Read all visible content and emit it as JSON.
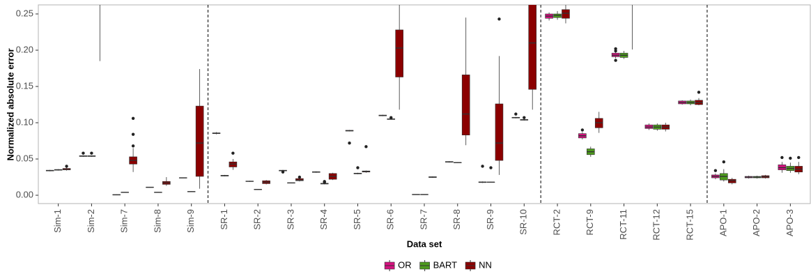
{
  "chart_data": {
    "type": "boxplot",
    "x_label": "Data set",
    "y_label": "Normalized absolute error",
    "categories": [
      "Sim-1",
      "Sim-2",
      "Sim-7",
      "Sim-8",
      "Sim-9",
      "SR-1",
      "SR-2",
      "SR-3",
      "SR-4",
      "SR-5",
      "SR-6",
      "SR-7",
      "SR-8",
      "SR-9",
      "SR-10",
      "RCT-2",
      "RCT-9",
      "RCT-11",
      "RCT-12",
      "RCT-15",
      "APO-1",
      "APO-2",
      "APO-3"
    ],
    "ylim": [
      -0.0115,
      0.2625
    ],
    "yticks": [
      {
        "value": 0,
        "label": "0.00"
      },
      0.05,
      {
        "value": 0.1,
        "label": "0.10"
      },
      0.15,
      {
        "value": 0.2,
        "label": "0.20"
      },
      0.25
    ],
    "legend": "bottom",
    "series": [
      {
        "name": "OR",
        "color": "#d4127f",
        "values": [
          {
            "min": 0.033,
            "q1": 0.0335,
            "median": 0.034,
            "q3": 0.0345,
            "max": 0.035
          },
          {
            "min": 0.053,
            "q1": 0.0535,
            "median": 0.054,
            "q3": 0.0545,
            "max": 0.055,
            "outliers": [
              0.058
            ]
          },
          {
            "min": 0,
            "q1": 0.0003,
            "median": 0.0006,
            "q3": 0.0009,
            "max": 0.0012
          },
          {
            "min": 0.0105,
            "q1": 0.0108,
            "median": 0.011,
            "q3": 0.0112,
            "max": 0.0115
          },
          {
            "min": 0.0235,
            "q1": 0.0238,
            "median": 0.024,
            "q3": 0.0242,
            "max": 0.0245
          },
          {
            "min": 0.084,
            "q1": 0.085,
            "median": 0.0855,
            "q3": 0.086,
            "max": 0.087
          },
          {
            "min": 0.0185,
            "q1": 0.019,
            "median": 0.0192,
            "q3": 0.0195,
            "max": 0.02
          },
          {
            "min": 0.033,
            "q1": 0.0335,
            "median": 0.034,
            "q3": 0.0345,
            "max": 0.035,
            "outliers": [
              0.032
            ]
          },
          {
            "min": 0.031,
            "q1": 0.0315,
            "median": 0.032,
            "q3": 0.0325,
            "max": 0.033
          },
          {
            "min": 0.088,
            "q1": 0.0885,
            "median": 0.089,
            "q3": 0.0895,
            "max": 0.09,
            "outliers": [
              0.072
            ]
          },
          {
            "min": 0.109,
            "q1": 0.1095,
            "median": 0.11,
            "q3": 0.1105,
            "max": 0.111
          },
          {
            "min": 0.0005,
            "q1": 0.0008,
            "median": 0.001,
            "q3": 0.0012,
            "max": 0.0015
          },
          {
            "min": 0.045,
            "q1": 0.0455,
            "median": 0.046,
            "q3": 0.0465,
            "max": 0.047
          },
          {
            "min": 0.017,
            "q1": 0.0175,
            "median": 0.018,
            "q3": 0.0185,
            "max": 0.019,
            "outliers": [
              0.04
            ]
          },
          {
            "min": 0.106,
            "q1": 0.1065,
            "median": 0.107,
            "q3": 0.1075,
            "max": 0.108,
            "outliers": [
              0.112
            ]
          },
          {
            "min": 0.241,
            "q1": 0.244,
            "median": 0.247,
            "q3": 0.25,
            "max": 0.252
          },
          {
            "min": 0.077,
            "q1": 0.079,
            "median": 0.082,
            "q3": 0.085,
            "max": 0.087,
            "outliers": [
              0.09
            ]
          },
          {
            "min": 0.189,
            "q1": 0.191,
            "median": 0.193,
            "q3": 0.196,
            "max": 0.198,
            "outliers": [
              0.202,
              0.199,
              0.186
            ]
          },
          {
            "min": 0.09,
            "q1": 0.092,
            "median": 0.094,
            "q3": 0.097,
            "max": 0.099
          },
          {
            "min": 0.125,
            "q1": 0.126,
            "median": 0.128,
            "q3": 0.13,
            "max": 0.131
          },
          {
            "min": 0.022,
            "q1": 0.024,
            "median": 0.026,
            "q3": 0.028,
            "max": 0.03,
            "outliers": [
              0.034
            ]
          },
          {
            "min": 0.023,
            "q1": 0.024,
            "median": 0.025,
            "q3": 0.026,
            "max": 0.027
          },
          {
            "min": 0.031,
            "q1": 0.035,
            "median": 0.038,
            "q3": 0.042,
            "max": 0.046,
            "outliers": [
              0.052
            ]
          }
        ]
      },
      {
        "name": "BART",
        "color": "#4c9a1c",
        "values": [
          {
            "min": 0.034,
            "q1": 0.0345,
            "median": 0.035,
            "q3": 0.0355,
            "max": 0.036
          },
          {
            "min": 0.053,
            "q1": 0.0535,
            "median": 0.054,
            "q3": 0.0545,
            "max": 0.055,
            "outliers": [
              0.058
            ]
          },
          {
            "min": 0.0035,
            "q1": 0.0038,
            "median": 0.004,
            "q3": 0.0042,
            "max": 0.0045
          },
          {
            "min": 0.0035,
            "q1": 0.0038,
            "median": 0.004,
            "q3": 0.0042,
            "max": 0.0045
          },
          {
            "min": 0.0045,
            "q1": 0.0048,
            "median": 0.005,
            "q3": 0.0052,
            "max": 0.0055
          },
          {
            "min": 0.026,
            "q1": 0.0265,
            "median": 0.027,
            "q3": 0.0275,
            "max": 0.028
          },
          {
            "min": 0.0075,
            "q1": 0.0078,
            "median": 0.008,
            "q3": 0.0082,
            "max": 0.0085
          },
          {
            "min": 0.0165,
            "q1": 0.0168,
            "median": 0.017,
            "q3": 0.0172,
            "max": 0.0175
          },
          {
            "min": 0.015,
            "q1": 0.0155,
            "median": 0.016,
            "q3": 0.0165,
            "max": 0.017,
            "outliers": [
              0.019,
              0.018
            ]
          },
          {
            "min": 0.029,
            "q1": 0.0295,
            "median": 0.03,
            "q3": 0.0305,
            "max": 0.031,
            "outliers": [
              0.038
            ]
          },
          {
            "min": 0.104,
            "q1": 0.1045,
            "median": 0.105,
            "q3": 0.1055,
            "max": 0.106,
            "outliers": [
              0.107
            ]
          },
          {
            "min": 0.0005,
            "q1": 0.0008,
            "median": 0.001,
            "q3": 0.0012,
            "max": 0.0015
          },
          {
            "min": 0.0445,
            "q1": 0.0448,
            "median": 0.045,
            "q3": 0.0452,
            "max": 0.0455
          },
          {
            "min": 0.0175,
            "q1": 0.0178,
            "median": 0.018,
            "q3": 0.0182,
            "max": 0.0185,
            "outliers": [
              0.038
            ]
          },
          {
            "min": 0.103,
            "q1": 0.1035,
            "median": 0.104,
            "q3": 0.1045,
            "max": 0.105,
            "outliers": [
              0.107
            ]
          },
          {
            "min": 0.242,
            "q1": 0.245,
            "median": 0.248,
            "q3": 0.25,
            "max": 0.254
          },
          {
            "min": 0.053,
            "q1": 0.056,
            "median": 0.06,
            "q3": 0.064,
            "max": 0.067
          },
          {
            "min": 0.188,
            "q1": 0.19,
            "median": 0.193,
            "q3": 0.196,
            "max": 0.199
          },
          {
            "min": 0.089,
            "q1": 0.091,
            "median": 0.094,
            "q3": 0.097,
            "max": 0.099
          },
          {
            "min": 0.124,
            "q1": 0.126,
            "median": 0.128,
            "q3": 0.13,
            "max": 0.132
          },
          {
            "min": 0.019,
            "q1": 0.021,
            "median": 0.026,
            "q3": 0.03,
            "max": 0.036,
            "outliers": [
              0.046
            ]
          },
          {
            "min": 0.023,
            "q1": 0.024,
            "median": 0.025,
            "q3": 0.026,
            "max": 0.027
          },
          {
            "min": 0.031,
            "q1": 0.034,
            "median": 0.037,
            "q3": 0.04,
            "max": 0.045,
            "outliers": [
              0.051
            ]
          }
        ]
      },
      {
        "name": "NN",
        "color": "#8b0000",
        "values": [
          {
            "min": 0.034,
            "q1": 0.035,
            "median": 0.0355,
            "q3": 0.037,
            "max": 0.038,
            "outliers": [
              0.04
            ]
          },
          {
            "min": 0.185,
            "q1": 0.3,
            "median": 0.35,
            "q3": 0.4,
            "max": 0.5
          },
          {
            "min": 0.032,
            "q1": 0.043,
            "median": 0.048,
            "q3": 0.053,
            "max": 0.065,
            "outliers": [
              0.068,
              0.084,
              0.106
            ]
          },
          {
            "min": 0.013,
            "q1": 0.015,
            "median": 0.017,
            "q3": 0.019,
            "max": 0.025
          },
          {
            "min": 0.009,
            "q1": 0.026,
            "median": 0.072,
            "q3": 0.123,
            "max": 0.174
          },
          {
            "min": 0.035,
            "q1": 0.039,
            "median": 0.043,
            "q3": 0.046,
            "max": 0.05,
            "outliers": [
              0.058
            ]
          },
          {
            "min": 0.015,
            "q1": 0.016,
            "median": 0.018,
            "q3": 0.02,
            "max": 0.021
          },
          {
            "min": 0.019,
            "q1": 0.02,
            "median": 0.021,
            "q3": 0.023,
            "max": 0.024,
            "outliers": [
              0.025
            ]
          },
          {
            "min": 0.021,
            "q1": 0.022,
            "median": 0.026,
            "q3": 0.03,
            "max": 0.031
          },
          {
            "min": 0.031,
            "q1": 0.032,
            "median": 0.033,
            "q3": 0.0335,
            "max": 0.034,
            "outliers": [
              0.067
            ]
          },
          {
            "min": 0.118,
            "q1": 0.163,
            "median": 0.203,
            "q3": 0.228,
            "max": 0.29
          },
          {
            "min": 0.024,
            "q1": 0.0245,
            "median": 0.025,
            "q3": 0.0255,
            "max": 0.026
          },
          {
            "min": 0.069,
            "q1": 0.083,
            "median": 0.112,
            "q3": 0.166,
            "max": 0.245
          },
          {
            "min": 0.028,
            "q1": 0.048,
            "median": 0.072,
            "q3": 0.126,
            "max": 0.192,
            "outliers": [
              0.243
            ]
          },
          {
            "min": 0.118,
            "q1": 0.146,
            "median": 0.21,
            "q3": 0.3,
            "max": 0.35
          },
          {
            "min": 0.237,
            "q1": 0.244,
            "median": 0.251,
            "q3": 0.256,
            "max": 0.27
          },
          {
            "min": 0.086,
            "q1": 0.093,
            "median": 0.1,
            "q3": 0.106,
            "max": 0.115
          },
          {
            "min": 0.201,
            "q1": 0.3,
            "median": 0.33,
            "q3": 0.36,
            "max": 0.45
          },
          {
            "min": 0.088,
            "q1": 0.091,
            "median": 0.094,
            "q3": 0.097,
            "max": 0.1
          },
          {
            "min": 0.124,
            "q1": 0.125,
            "median": 0.128,
            "q3": 0.131,
            "max": 0.134,
            "outliers": [
              0.142
            ]
          },
          {
            "min": 0.015,
            "q1": 0.017,
            "median": 0.02,
            "q3": 0.022,
            "max": 0.024
          },
          {
            "min": 0.023,
            "q1": 0.024,
            "median": 0.0255,
            "q3": 0.027,
            "max": 0.028
          },
          {
            "min": 0.029,
            "q1": 0.032,
            "median": 0.036,
            "q3": 0.04,
            "max": 0.046,
            "outliers": [
              0.052
            ]
          }
        ]
      }
    ]
  }
}
